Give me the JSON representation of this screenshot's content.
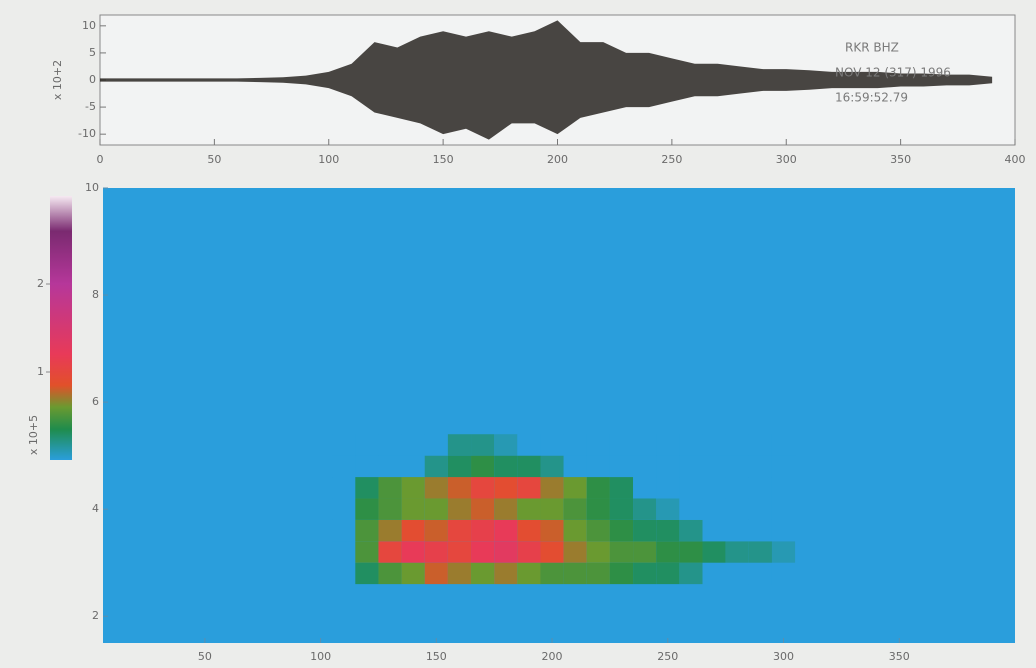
{
  "chart_data": [
    {
      "type": "area",
      "y_label": "x 10+2",
      "annotations": [
        "RKR  BHZ",
        "NOV 12 (317) 1996",
        "16:59:52.79"
      ],
      "color": "#2a2622",
      "x": [
        0,
        10,
        20,
        30,
        40,
        50,
        60,
        70,
        80,
        90,
        100,
        110,
        120,
        130,
        140,
        150,
        160,
        170,
        180,
        190,
        200,
        210,
        220,
        230,
        240,
        250,
        260,
        270,
        280,
        290,
        300,
        310,
        320,
        330,
        340,
        350,
        360,
        370,
        380,
        390
      ],
      "series": [
        {
          "values": [
            0.3,
            0.3,
            0.3,
            0.3,
            0.3,
            0.3,
            0.3,
            0.4,
            0.5,
            0.8,
            1.5,
            3,
            7,
            6,
            8,
            9,
            8,
            9,
            8,
            9,
            11,
            7,
            7,
            5,
            5,
            4,
            3,
            3,
            2.5,
            2,
            2,
            1.8,
            1.5,
            1.5,
            1.5,
            1.2,
            1.2,
            1,
            1,
            0.6
          ]
        },
        {
          "values": [
            -0.3,
            -0.3,
            -0.3,
            -0.3,
            -0.3,
            -0.3,
            -0.3,
            -0.4,
            -0.5,
            -0.8,
            -1.5,
            -3,
            -6,
            -7,
            -8,
            -10,
            -9,
            -11,
            -8,
            -8,
            -10,
            -7,
            -6,
            -5,
            -5,
            -4,
            -3,
            -3,
            -2.5,
            -2,
            -2,
            -1.8,
            -1.5,
            -1.5,
            -1.5,
            -1.2,
            -1.2,
            -1,
            -1,
            -0.6
          ]
        }
      ],
      "xlim": [
        0,
        400
      ],
      "xticks": [
        0,
        50,
        100,
        150,
        200,
        250,
        300,
        350,
        400
      ],
      "ylim": [
        -12,
        12
      ],
      "yticks": [
        -10,
        -5,
        0,
        5,
        10
      ]
    },
    {
      "type": "heatmap",
      "x": [
        110,
        120,
        130,
        140,
        150,
        160,
        170,
        180,
        190,
        200,
        210,
        220,
        230,
        240,
        250,
        260,
        270,
        280,
        290,
        300
      ],
      "y": [
        2.8,
        3.2,
        3.6,
        4.0,
        4.4,
        4.8,
        5.2
      ],
      "z": [
        [
          0,
          0.3,
          0.5,
          0.6,
          0.8,
          0.7,
          0.6,
          0.7,
          0.6,
          0.5,
          0.5,
          0.5,
          0.4,
          0.3,
          0.3,
          0.2,
          0,
          0,
          0,
          0
        ],
        [
          0,
          0.5,
          1.0,
          1.2,
          1.1,
          1.0,
          1.2,
          1.3,
          1.1,
          0.9,
          0.7,
          0.6,
          0.5,
          0.5,
          0.4,
          0.4,
          0.3,
          0.2,
          0.2,
          0.1
        ],
        [
          0,
          0.5,
          0.7,
          0.9,
          0.8,
          1.0,
          1.1,
          1.2,
          0.9,
          0.8,
          0.6,
          0.5,
          0.4,
          0.3,
          0.3,
          0.2,
          0,
          0,
          0,
          0
        ],
        [
          0,
          0.4,
          0.5,
          0.6,
          0.6,
          0.7,
          0.8,
          0.7,
          0.6,
          0.6,
          0.5,
          0.4,
          0.3,
          0.2,
          0.1,
          0,
          0,
          0,
          0,
          0
        ],
        [
          0,
          0.3,
          0.5,
          0.6,
          0.7,
          0.8,
          1.0,
          0.9,
          1.0,
          0.7,
          0.6,
          0.4,
          0.3,
          0,
          0,
          0,
          0,
          0,
          0,
          0
        ],
        [
          0,
          0,
          0,
          0,
          0.2,
          0.3,
          0.4,
          0.3,
          0.3,
          0.2,
          0,
          0,
          0,
          0,
          0,
          0,
          0,
          0,
          0,
          0
        ],
        [
          0,
          0,
          0,
          0,
          0,
          0.2,
          0.2,
          0.1,
          0,
          0,
          0,
          0,
          0,
          0,
          0,
          0,
          0,
          0,
          0,
          0
        ]
      ],
      "xlim": [
        6,
        400
      ],
      "xticks": [
        50,
        100,
        150,
        200,
        250,
        300,
        350
      ],
      "ylim": [
        1.5,
        10
      ],
      "yticks": [
        2,
        4,
        6,
        8,
        10
      ],
      "colorbar_label": "x 10+5",
      "colorbar_lim": [
        0,
        3
      ],
      "colorbar_ticks": [
        1,
        2
      ],
      "colorscale": [
        [
          0,
          "#2a9edc"
        ],
        [
          0.35,
          "#1f8c4c"
        ],
        [
          0.6,
          "#6a9a30"
        ],
        [
          0.85,
          "#e2502a"
        ],
        [
          1.2,
          "#e83a58"
        ],
        [
          2,
          "#b6379a"
        ],
        [
          2.6,
          "#7a2a70"
        ],
        [
          3,
          "#f6eaf2"
        ]
      ]
    }
  ]
}
